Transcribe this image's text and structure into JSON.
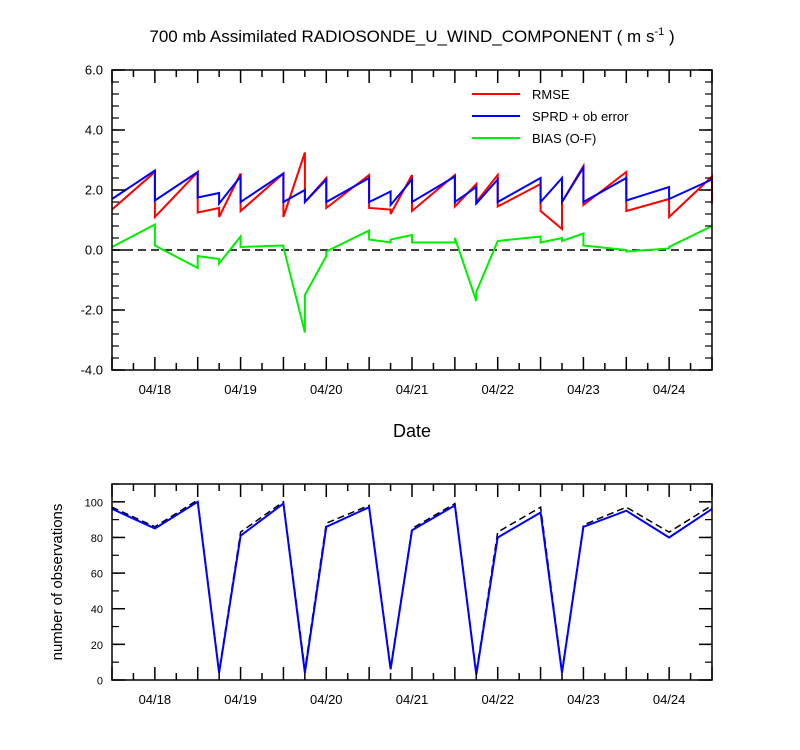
{
  "chart_data": [
    {
      "type": "line",
      "title": "700 mb Assimilated RADIOSONDE_U_WIND_COMPONENT ( m s",
      "title_superscript": "-1",
      "title_suffix": " )",
      "xlabel": "Date",
      "ylabel": "",
      "ylim": [
        -4.0,
        6.0
      ],
      "yticks": [
        "-4.0",
        "-2.0",
        "0.0",
        "2.0",
        "4.0",
        "6.0"
      ],
      "xlim": [
        17.5,
        24.5
      ],
      "xtick_labels": [
        "04/18",
        "04/19",
        "04/20",
        "04/21",
        "04/22",
        "04/23",
        "04/24"
      ],
      "zero_line": "dashed",
      "legend_position": "top-right",
      "series": [
        {
          "name": "RMSE",
          "color": "#ff0000",
          "x": [
            17.5,
            18.0,
            18.0,
            18.5,
            18.5,
            18.75,
            18.75,
            19.0,
            19.0,
            19.5,
            19.5,
            19.75,
            19.75,
            20.0,
            20.0,
            20.5,
            20.5,
            20.75,
            20.75,
            21.0,
            21.0,
            21.5,
            21.5,
            21.75,
            21.75,
            22.0,
            22.0,
            22.5,
            22.5,
            22.75,
            22.75,
            23.0,
            23.0,
            23.5,
            23.5,
            24.0,
            24.0,
            24.5,
            24.5
          ],
          "y": [
            1.35,
            2.6,
            1.1,
            2.6,
            1.25,
            1.4,
            1.1,
            2.55,
            1.3,
            2.55,
            1.1,
            3.25,
            1.6,
            2.4,
            1.4,
            2.5,
            1.4,
            1.35,
            1.2,
            2.5,
            1.3,
            2.5,
            1.45,
            2.2,
            1.6,
            2.5,
            1.45,
            2.2,
            1.3,
            0.7,
            1.6,
            2.8,
            1.5,
            2.6,
            1.3,
            1.7,
            1.1,
            2.45,
            1.55
          ]
        },
        {
          "name": "SPRD + ob error",
          "color": "#0000ff",
          "x": [
            17.5,
            18.0,
            18.0,
            18.5,
            18.5,
            18.75,
            18.75,
            19.0,
            19.0,
            19.5,
            19.5,
            19.75,
            19.75,
            20.0,
            20.0,
            20.5,
            20.5,
            20.75,
            20.75,
            21.0,
            21.0,
            21.5,
            21.5,
            21.75,
            21.75,
            22.0,
            22.0,
            22.5,
            22.5,
            22.75,
            22.75,
            23.0,
            23.0,
            23.5,
            23.5,
            24.0,
            24.0,
            24.5
          ],
          "y": [
            1.7,
            2.65,
            1.65,
            2.6,
            1.75,
            1.9,
            1.55,
            2.45,
            1.6,
            2.55,
            1.6,
            2.0,
            1.6,
            2.35,
            1.6,
            2.4,
            1.6,
            1.95,
            1.5,
            2.35,
            1.6,
            2.45,
            1.6,
            2.1,
            1.55,
            2.35,
            1.6,
            2.4,
            1.6,
            2.4,
            1.6,
            2.75,
            1.6,
            2.4,
            1.65,
            2.1,
            1.7,
            2.35
          ]
        },
        {
          "name": "BIAS (O-F)",
          "color": "#00ee00",
          "x": [
            17.5,
            18.0,
            18.0,
            18.5,
            18.5,
            18.75,
            18.75,
            19.0,
            19.0,
            19.5,
            19.5,
            19.75,
            19.75,
            20.0,
            20.0,
            20.5,
            20.5,
            20.75,
            20.75,
            21.0,
            21.0,
            21.5,
            21.5,
            21.75,
            21.75,
            22.0,
            22.0,
            22.5,
            22.5,
            22.75,
            22.75,
            23.0,
            23.0,
            23.5,
            23.5,
            24.0,
            24.0,
            24.5
          ],
          "y": [
            0.1,
            0.85,
            0.15,
            -0.6,
            -0.2,
            -0.3,
            -0.45,
            0.45,
            0.1,
            0.15,
            0.1,
            -2.75,
            -1.5,
            -0.2,
            -0.05,
            0.65,
            0.35,
            0.25,
            0.35,
            0.5,
            0.25,
            0.25,
            0.4,
            -1.7,
            -1.4,
            0.3,
            0.3,
            0.45,
            0.25,
            0.4,
            0.3,
            0.55,
            0.15,
            0.0,
            -0.05,
            0.05,
            0.1,
            0.8
          ]
        }
      ]
    },
    {
      "type": "line",
      "title": "",
      "xlabel": "",
      "ylabel": "number of observations",
      "ylim": [
        0,
        110
      ],
      "yticks": [
        "0",
        "20",
        "40",
        "60",
        "80",
        "100"
      ],
      "xlim": [
        17.5,
        24.5
      ],
      "xtick_labels": [
        "04/18",
        "04/19",
        "04/20",
        "04/21",
        "04/22",
        "04/23",
        "04/24"
      ],
      "series": [
        {
          "name": "",
          "style": "dashed",
          "color": "#000000",
          "x": [
            17.5,
            18.0,
            18.5,
            18.75,
            19.0,
            19.5,
            19.75,
            20.0,
            20.5,
            20.75,
            21.0,
            21.5,
            21.75,
            22.0,
            22.5,
            22.75,
            23.0,
            23.5,
            24.0,
            24.5
          ],
          "y": [
            97,
            86,
            101,
            5,
            83,
            100,
            6,
            88,
            98,
            7,
            85,
            99,
            4,
            83,
            97,
            5,
            87,
            97,
            83,
            98
          ]
        },
        {
          "name": "",
          "style": "solid",
          "color": "#0000ff",
          "x": [
            17.5,
            18.0,
            18.5,
            18.75,
            19.0,
            19.5,
            19.75,
            20.0,
            20.5,
            20.75,
            21.0,
            21.5,
            21.75,
            22.0,
            22.5,
            22.75,
            23.0,
            23.5,
            24.0,
            24.5
          ],
          "y": [
            96,
            85,
            100,
            4,
            81,
            99,
            4,
            86,
            97,
            6,
            84,
            98,
            3,
            80,
            94,
            4,
            86,
            95,
            80,
            96
          ]
        }
      ]
    }
  ]
}
